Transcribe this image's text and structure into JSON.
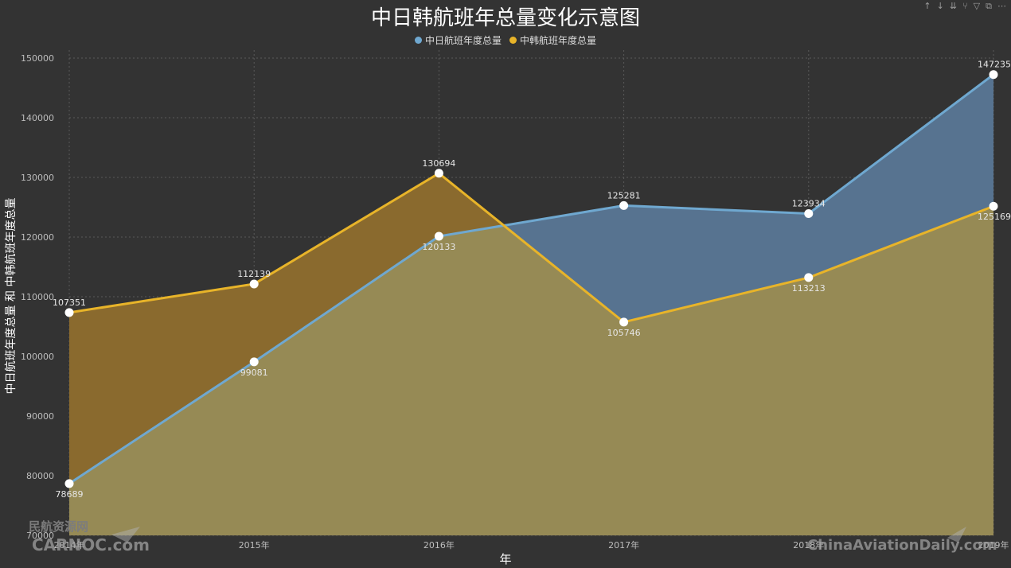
{
  "toolbar": {
    "icons": [
      {
        "name": "drill-up-icon",
        "glyph": "↑"
      },
      {
        "name": "drill-down-icon",
        "glyph": "↓"
      },
      {
        "name": "expand-all-icon",
        "glyph": "⇊"
      },
      {
        "name": "hierarchy-icon",
        "glyph": "⑂"
      },
      {
        "name": "filter-icon",
        "glyph": "▽"
      },
      {
        "name": "focus-mode-icon",
        "glyph": "⧉"
      },
      {
        "name": "more-options-icon",
        "glyph": "⋯"
      }
    ]
  },
  "watermarks": {
    "left_cn": "民航资源网",
    "left_en": "CARNOC.com",
    "right_en": "ChinaAviationDaily.com"
  },
  "chart_data": {
    "type": "area",
    "title": "中日韩航班年总量变化示意图",
    "xlabel": "年",
    "ylabel": "中日航班年度总量 和 中韩航班年度总量",
    "categories": [
      "2014年",
      "2015年",
      "2016年",
      "2017年",
      "2018年",
      "2019年"
    ],
    "ylim": [
      70000,
      150000
    ],
    "yticks": [
      70000,
      80000,
      90000,
      100000,
      110000,
      120000,
      130000,
      140000,
      150000
    ],
    "grid": true,
    "legend_position": "top-center",
    "series": [
      {
        "name": "中日航班年度总量",
        "values": [
          78689,
          99081,
          120133,
          125281,
          123934,
          147235
        ],
        "color": "#6fa8d0",
        "fill": "#577390"
      },
      {
        "name": "中韩航班年度总量",
        "values": [
          107351,
          112139,
          130694,
          105746,
          113213,
          125169
        ],
        "color": "#e8b429",
        "fill": "#8a6a2e"
      }
    ],
    "overlap_fill": "#968a55"
  }
}
